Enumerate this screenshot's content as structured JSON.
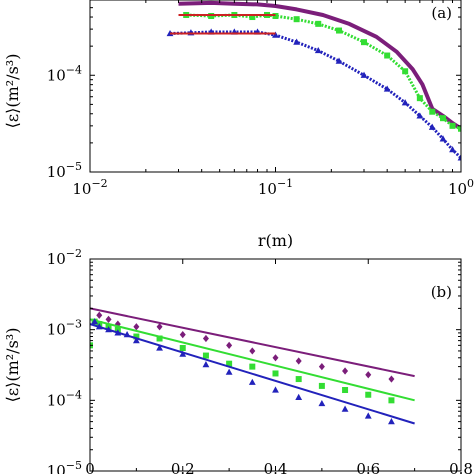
{
  "chart_data": [
    {
      "type": "scatter",
      "panel_label": "(a)",
      "xscale": "log",
      "yscale": "log",
      "xlim": [
        0.01,
        1
      ],
      "ylim": [
        1e-05,
        0.0006
      ],
      "xlabel": "r(m)",
      "ylabel": "⟨ε⟩(m²/s³)",
      "xticks": [
        {
          "value": 0.01,
          "base": "10",
          "exp": "−2"
        },
        {
          "value": 0.1,
          "base": "10",
          "exp": "−1"
        },
        {
          "value": 1,
          "base": "10",
          "exp": "0"
        }
      ],
      "yticks": [
        {
          "value": 1e-05,
          "base": "10",
          "exp": "−5"
        },
        {
          "value": 0.0001,
          "base": "10",
          "exp": "−4"
        }
      ],
      "legend": "none",
      "grid": false,
      "series": [
        {
          "color": "#7b1e7a",
          "marker": "line",
          "x": [
            0.03,
            0.045,
            0.06,
            0.08,
            0.1,
            0.13,
            0.18,
            0.25,
            0.35,
            0.45,
            0.55,
            0.62,
            0.7,
            0.8,
            0.9,
            1.0
          ],
          "y": [
            0.00055,
            0.00056,
            0.00055,
            0.00054,
            0.00052,
            0.00048,
            0.00042,
            0.00034,
            0.00025,
            0.000175,
            0.000115,
            8e-05,
            4.5e-05,
            3.8e-05,
            3.2e-05,
            2.8e-05
          ]
        },
        {
          "color": "#33dd33",
          "marker": "square",
          "x": [
            0.033,
            0.045,
            0.06,
            0.075,
            0.09,
            0.1,
            0.13,
            0.17,
            0.22,
            0.3,
            0.4,
            0.5,
            0.6,
            0.7,
            0.8,
            0.9,
            1.0
          ],
          "y": [
            0.00042,
            0.00041,
            0.00042,
            0.0004,
            0.00042,
            0.00041,
            0.00038,
            0.00034,
            0.00029,
            0.00022,
            0.00016,
            0.00011,
            5.8e-05,
            4.2e-05,
            3.6e-05,
            3e-05,
            2.8e-05
          ]
        },
        {
          "color": "#2222bb",
          "marker": "triangle",
          "x": [
            0.027,
            0.035,
            0.045,
            0.06,
            0.08,
            0.1,
            0.13,
            0.17,
            0.22,
            0.3,
            0.4,
            0.5,
            0.6,
            0.7,
            0.8,
            0.9,
            1.0
          ],
          "y": [
            0.00027,
            0.000275,
            0.00028,
            0.00028,
            0.00028,
            0.00026,
            0.00022,
            0.00018,
            0.00014,
            0.0001,
            7.2e-05,
            5.2e-05,
            3.8e-05,
            2.9e-05,
            2.2e-05,
            1.7e-05,
            1.4e-05
          ]
        }
      ],
      "plateau_lines": [
        {
          "color": "#cc2222",
          "x": [
            0.03,
            0.1
          ],
          "y": 0.00042
        },
        {
          "color": "#cc2222",
          "x": [
            0.027,
            0.1
          ],
          "y": 0.00027
        }
      ]
    },
    {
      "type": "scatter",
      "panel_label": "(b)",
      "xscale": "linear",
      "yscale": "log",
      "xlim": [
        0,
        0.8
      ],
      "ylim": [
        1e-05,
        0.01
      ],
      "xlabel": "",
      "ylabel": "⟨ε⟩(m²/s³)",
      "xticks": [
        {
          "value": 0,
          "label": "0"
        },
        {
          "value": 0.2,
          "label": "0.2"
        },
        {
          "value": 0.4,
          "label": "0.4"
        },
        {
          "value": 0.6,
          "label": "0.6"
        },
        {
          "value": 0.8,
          "label": "0.8"
        }
      ],
      "yticks": [
        {
          "value": 1e-05,
          "base": "10",
          "exp": "−5"
        },
        {
          "value": 0.0001,
          "base": "10",
          "exp": "−4"
        },
        {
          "value": 0.001,
          "base": "10",
          "exp": "−3"
        },
        {
          "value": 0.01,
          "base": "10",
          "exp": "−2"
        }
      ],
      "legend": "none",
      "grid": false,
      "series": [
        {
          "color": "#7b1e7a",
          "marker": "diamond",
          "x": [
            0.02,
            0.04,
            0.06,
            0.1,
            0.15,
            0.2,
            0.25,
            0.3,
            0.35,
            0.4,
            0.45,
            0.5,
            0.55,
            0.6,
            0.65
          ],
          "y": [
            0.0016,
            0.0014,
            0.0012,
            0.0011,
            0.0011,
            0.00085,
            0.00075,
            0.0006,
            0.0005,
            0.0004,
            0.00036,
            0.0003,
            0.00026,
            0.00023,
            0.0002
          ],
          "fit": {
            "x": [
              0,
              0.7
            ],
            "y": [
              0.002,
              0.00022
            ]
          }
        },
        {
          "color": "#33dd33",
          "marker": "square",
          "x": [
            0,
            0.01,
            0.02,
            0.04,
            0.06,
            0.1,
            0.15,
            0.2,
            0.25,
            0.3,
            0.35,
            0.4,
            0.45,
            0.5,
            0.55,
            0.6,
            0.65
          ],
          "y": [
            0.0006,
            0.0013,
            0.0012,
            0.0011,
            0.001,
            0.0008,
            0.00075,
            0.00055,
            0.00043,
            0.00033,
            0.0003,
            0.00024,
            0.0002,
            0.00016,
            0.00014,
            0.00012,
            0.0001
          ],
          "fit": {
            "x": [
              0,
              0.7
            ],
            "y": [
              0.0014,
              0.0001
            ]
          }
        },
        {
          "color": "#2222bb",
          "marker": "triangle",
          "x": [
            0.01,
            0.02,
            0.04,
            0.06,
            0.08,
            0.1,
            0.15,
            0.2,
            0.25,
            0.3,
            0.35,
            0.4,
            0.45,
            0.5,
            0.55,
            0.6,
            0.65
          ],
          "y": [
            0.0013,
            0.0011,
            0.001,
            0.0009,
            0.00085,
            0.0007,
            0.00055,
            0.00045,
            0.00032,
            0.00025,
            0.00018,
            0.00014,
            0.00011,
            9e-05,
            7.5e-05,
            6e-05,
            5e-05
          ],
          "fit": {
            "x": [
              0,
              0.7
            ],
            "y": [
              0.0012,
              4.7e-05
            ]
          }
        }
      ]
    }
  ]
}
